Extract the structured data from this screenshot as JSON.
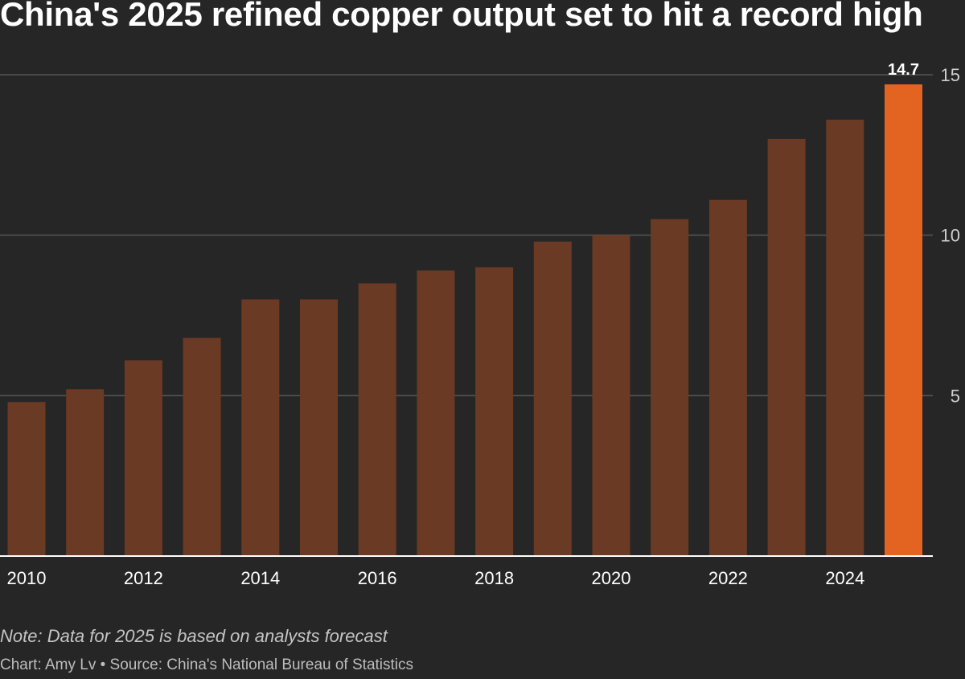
{
  "title": "China's 2025 refined copper output set to hit a record high",
  "note": "Note: Data for 2025 is based on analysts forecast",
  "credit": "Chart: Amy Lv • Source: China's National Bureau of Statistics",
  "colors": {
    "background": "#262626",
    "bar": "#6a3a24",
    "highlight_bar": "#e36420",
    "gridline": "#555555",
    "baseline": "#ffffff"
  },
  "chart_data": {
    "type": "bar",
    "categories": [
      "2010",
      "2011",
      "2012",
      "2013",
      "2014",
      "2015",
      "2016",
      "2017",
      "2018",
      "2019",
      "2020",
      "2021",
      "2022",
      "2023",
      "2024",
      "2025"
    ],
    "x_tick_labels": [
      "2010",
      "2012",
      "2014",
      "2016",
      "2018",
      "2020",
      "2022",
      "2024"
    ],
    "values": [
      4.8,
      5.2,
      6.1,
      6.8,
      8.0,
      8.0,
      8.5,
      8.9,
      9.0,
      9.8,
      10.0,
      10.5,
      11.1,
      13.0,
      13.6,
      14.7
    ],
    "highlight_index": 15,
    "data_labels": [
      {
        "category": "2025",
        "text": "14.7"
      }
    ],
    "y_ticks": [
      5,
      10,
      15
    ],
    "ylim": [
      0,
      15
    ],
    "y_axis_side": "right",
    "grid": true,
    "title": "China's 2025 refined copper output set to hit a record high",
    "xlabel": "",
    "ylabel": ""
  }
}
